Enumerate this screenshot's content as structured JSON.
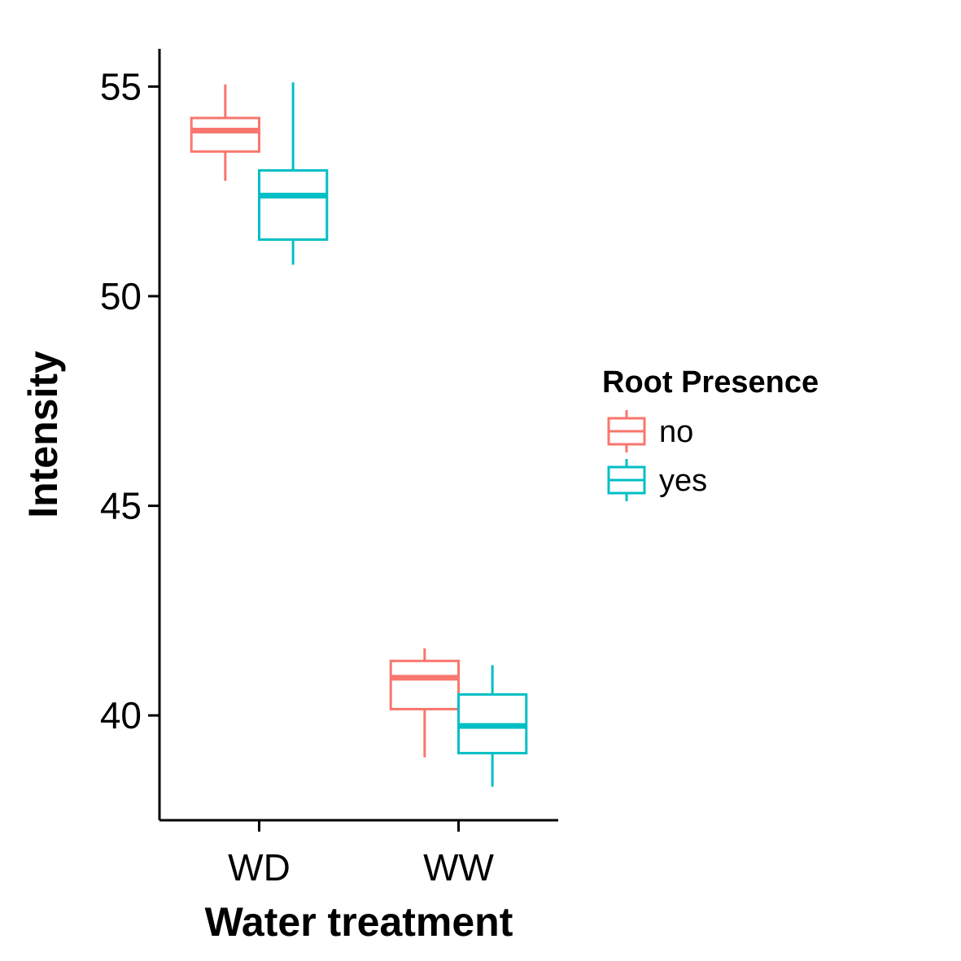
{
  "chart_data": {
    "type": "box",
    "xlabel": "Water treatment",
    "ylabel": "Intensity",
    "categories": [
      "WD",
      "WW"
    ],
    "ylim": [
      37.5,
      55.9
    ],
    "yticks": [
      40,
      45,
      50,
      55
    ],
    "ytick_labels": [
      "40",
      "45",
      "50",
      "55"
    ],
    "grid": false,
    "legend": {
      "title": "Root Presence",
      "position": "right",
      "entries": [
        "no",
        "yes"
      ]
    },
    "series": [
      {
        "name": "no",
        "color": "#F8766D",
        "boxes": [
          {
            "category": "WD",
            "min": 52.75,
            "q1": 53.45,
            "median": 53.95,
            "q3": 54.25,
            "max": 55.05
          },
          {
            "category": "WW",
            "min": 39.0,
            "q1": 40.15,
            "median": 40.9,
            "q3": 41.3,
            "max": 41.6
          }
        ]
      },
      {
        "name": "yes",
        "color": "#00BFC4",
        "boxes": [
          {
            "category": "WD",
            "min": 50.75,
            "q1": 51.35,
            "median": 52.4,
            "q3": 53.0,
            "max": 55.1
          },
          {
            "category": "WW",
            "min": 38.3,
            "q1": 39.1,
            "median": 39.75,
            "q3": 40.5,
            "max": 41.2
          }
        ]
      }
    ]
  }
}
